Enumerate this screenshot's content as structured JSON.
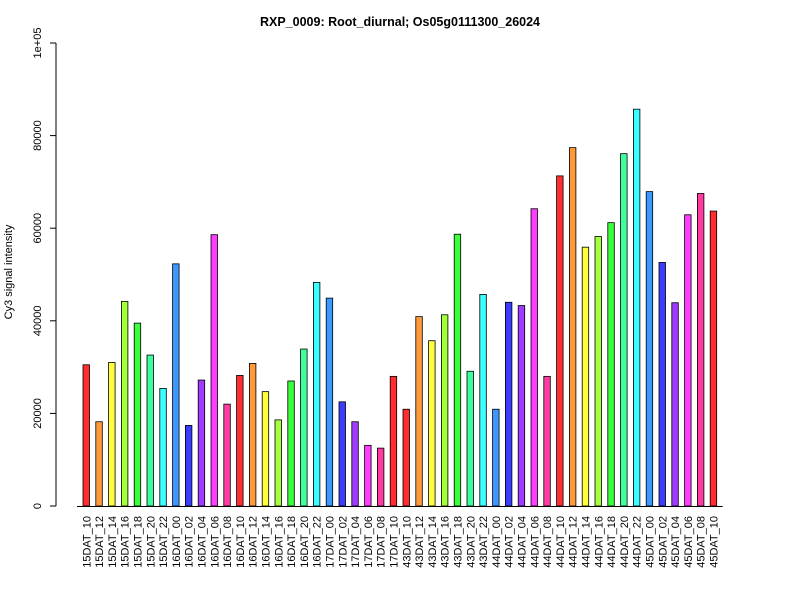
{
  "chart_data": {
    "type": "bar",
    "title": "RXP_0009: Root_diurnal; Os05g0111300_26024",
    "xlabel": "",
    "ylabel": "Cy3 signal intensity",
    "ylim": [
      0,
      100000
    ],
    "y_ticks": [
      0,
      20000,
      40000,
      60000,
      80000,
      100000
    ],
    "y_tick_labels": [
      "0",
      "20000",
      "40000",
      "60000",
      "80000",
      "1e+05"
    ],
    "grid": false,
    "categories": [
      "15DAT_10",
      "15DAT_12",
      "15DAT_14",
      "15DAT_16",
      "15DAT_18",
      "15DAT_20",
      "15DAT_22",
      "16DAT_00",
      "16DAT_02",
      "16DAT_04",
      "16DAT_06",
      "16DAT_08",
      "16DAT_10",
      "16DAT_12",
      "16DAT_14",
      "16DAT_16",
      "16DAT_18",
      "16DAT_20",
      "16DAT_22",
      "17DAT_00",
      "17DAT_02",
      "17DAT_04",
      "17DAT_06",
      "17DAT_08",
      "17DAT_10",
      "43DAT_10",
      "43DAT_12",
      "43DAT_14",
      "43DAT_16",
      "43DAT_18",
      "43DAT_20",
      "43DAT_22",
      "44DAT_00",
      "44DAT_02",
      "44DAT_04",
      "44DAT_06",
      "44DAT_08",
      "44DAT_10",
      "44DAT_12",
      "44DAT_14",
      "44DAT_16",
      "44DAT_18",
      "44DAT_20",
      "44DAT_22",
      "45DAT_00",
      "45DAT_02",
      "45DAT_04",
      "45DAT_06",
      "45DAT_08",
      "45DAT_10"
    ],
    "values": [
      30500,
      18200,
      31000,
      44200,
      39500,
      32600,
      25400,
      52300,
      17400,
      27200,
      58600,
      22000,
      28200,
      30800,
      24700,
      18600,
      27000,
      33900,
      48300,
      44900,
      22500,
      18200,
      13100,
      12500,
      28000,
      20900,
      40900,
      35700,
      41300,
      58700,
      29100,
      45700,
      20900,
      44000,
      43300,
      64200,
      28000,
      71300,
      77400,
      55900,
      58200,
      61200,
      76100,
      85700,
      67900,
      52600,
      43900,
      62900,
      67500,
      63700
    ],
    "colors": [
      "#ff2d2d",
      "#ff9a3c",
      "#ffff3c",
      "#a6ff3c",
      "#3cff3c",
      "#3cff9f",
      "#3cffff",
      "#3c98ff",
      "#3c3cff",
      "#9f3cff",
      "#ff3cff",
      "#ff3c9f",
      "#ff2d2d",
      "#ff9a3c",
      "#ffff3c",
      "#a6ff3c",
      "#3cff3c",
      "#3cff9f",
      "#3cffff",
      "#3c98ff",
      "#3c3cff",
      "#9f3cff",
      "#ff3cff",
      "#ff3c9f",
      "#ff2d2d",
      "#ff2d2d",
      "#ff9a3c",
      "#ffff3c",
      "#a6ff3c",
      "#3cff3c",
      "#3cff9f",
      "#3cffff",
      "#3c98ff",
      "#3c3cff",
      "#9f3cff",
      "#ff3cff",
      "#ff3c9f",
      "#ff2d2d",
      "#ff9a3c",
      "#ffff3c",
      "#a6ff3c",
      "#3cff3c",
      "#3cff9f",
      "#3cffff",
      "#3c98ff",
      "#3c3cff",
      "#9f3cff",
      "#ff3cff",
      "#ff3c9f",
      "#ff2d2d"
    ]
  }
}
